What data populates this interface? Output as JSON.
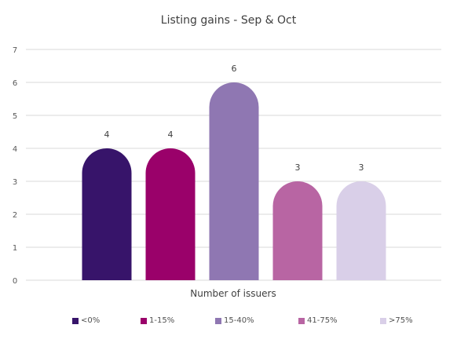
{
  "chart_data": {
    "type": "bar",
    "title": "Listing gains - Sep & Oct",
    "xlabel": "Number of issuers",
    "ylabel": "",
    "categories": [
      "<0%",
      "1-15%",
      "15-40%",
      "41-75%",
      ">75%"
    ],
    "values": [
      4,
      4,
      6,
      3,
      3
    ],
    "data_labels": [
      "4",
      "4",
      "6",
      "3",
      "3"
    ],
    "colors": [
      "#37146A",
      "#9A016A",
      "#8F77B2",
      "#B865A3",
      "#D9CFE8"
    ],
    "ylim": [
      0,
      7
    ],
    "yticks": [
      "0",
      "1",
      "2",
      "3",
      "4",
      "5",
      "6",
      "7"
    ],
    "grid": true,
    "legend_position": "bottom"
  }
}
